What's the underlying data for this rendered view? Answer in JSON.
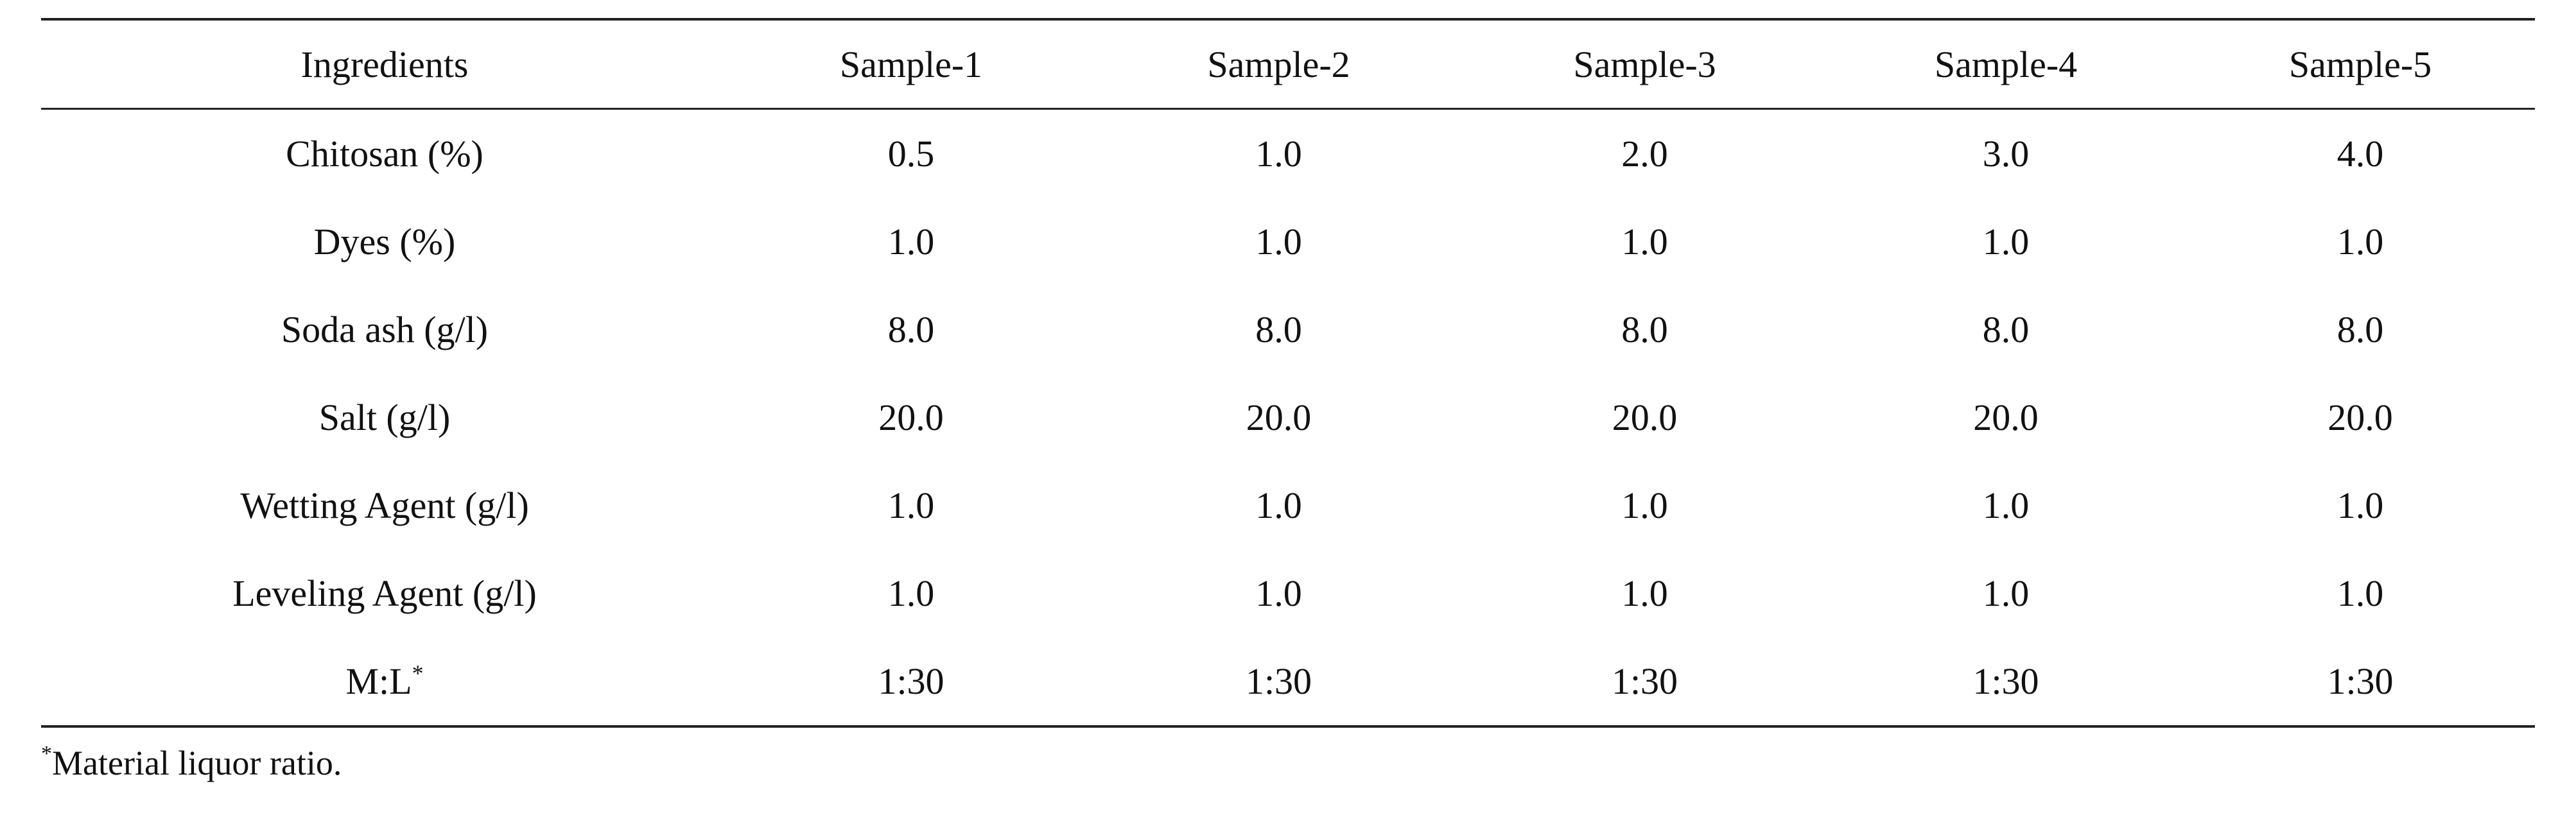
{
  "table": {
    "headers": [
      "Ingredients",
      "Sample-1",
      "Sample-2",
      "Sample-3",
      "Sample-4",
      "Sample-5"
    ],
    "rows": [
      {
        "label": "Chitosan (%)",
        "values": [
          "0.5",
          "1.0",
          "2.0",
          "3.0",
          "4.0"
        ]
      },
      {
        "label": "Dyes (%)",
        "values": [
          "1.0",
          "1.0",
          "1.0",
          "1.0",
          "1.0"
        ]
      },
      {
        "label": "Soda ash (g/l)",
        "values": [
          "8.0",
          "8.0",
          "8.0",
          "8.0",
          "8.0"
        ]
      },
      {
        "label": "Salt (g/l)",
        "values": [
          "20.0",
          "20.0",
          "20.0",
          "20.0",
          "20.0"
        ]
      },
      {
        "label": "Wetting Agent (g/l)",
        "values": [
          "1.0",
          "1.0",
          "1.0",
          "1.0",
          "1.0"
        ]
      },
      {
        "label": "Leveling Agent (g/l)",
        "values": [
          "1.0",
          "1.0",
          "1.0",
          "1.0",
          "1.0"
        ]
      },
      {
        "label": "M:L",
        "label_sup": "*",
        "values": [
          "1:30",
          "1:30",
          "1:30",
          "1:30",
          "1:30"
        ]
      }
    ]
  },
  "footnote": {
    "marker": "*",
    "text": "Material liquor ratio."
  }
}
